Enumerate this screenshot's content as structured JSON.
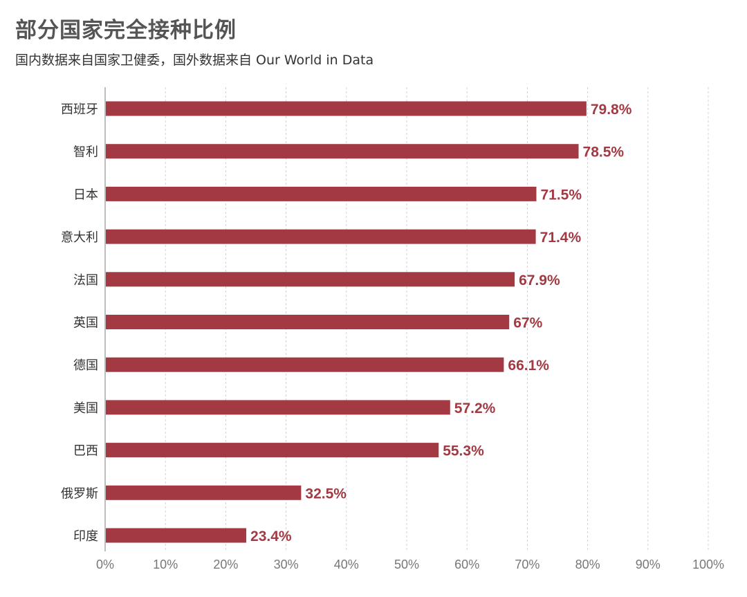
{
  "chart_data": {
    "type": "bar",
    "orientation": "horizontal",
    "title": "部分国家完全接种比例",
    "subtitle": "国内数据来自国家卫健委，国外数据来自 Our World in Data",
    "categories": [
      "西班牙",
      "智利",
      "日本",
      "意大利",
      "法国",
      "英国",
      "德国",
      "美国",
      "巴西",
      "俄罗斯",
      "印度"
    ],
    "values": [
      79.8,
      78.5,
      71.5,
      71.4,
      67.9,
      67,
      66.1,
      57.2,
      55.3,
      32.5,
      23.4
    ],
    "value_labels": [
      "79.8%",
      "78.5%",
      "71.5%",
      "71.4%",
      "67.9%",
      "67%",
      "66.1%",
      "57.2%",
      "55.3%",
      "32.5%",
      "23.4%"
    ],
    "x_ticks": [
      0,
      10,
      20,
      30,
      40,
      50,
      60,
      70,
      80,
      90,
      100
    ],
    "x_tick_labels": [
      "0%",
      "10%",
      "20%",
      "30%",
      "40%",
      "50%",
      "60%",
      "70%",
      "80%",
      "90%",
      "100%"
    ],
    "xlim": [
      0,
      100
    ],
    "xlabel": "",
    "ylabel": "",
    "grid": "vertical dashed",
    "legend": "none",
    "bar_color": "#a33a43",
    "value_label_color": "#a33a43"
  }
}
